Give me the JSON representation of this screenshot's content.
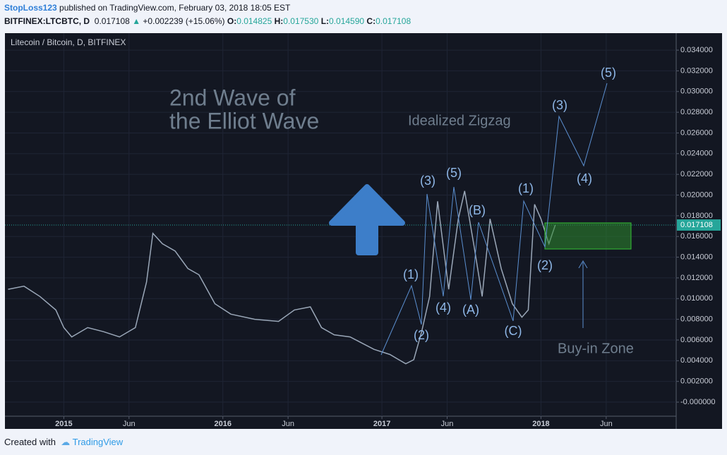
{
  "header": {
    "author": "StopLoss123",
    "published": "published on TradingView.com, February 03, 2018 18:05 EST",
    "symbol": "BITFINEX:LTCBTC, D",
    "last": "0.017108",
    "change": "+0.002239 (+15.06%)",
    "open_label": "O:",
    "open": "0.014825",
    "high_label": "H:",
    "high": "0.017530",
    "low_label": "L:",
    "low": "0.014590",
    "close_label": "C:",
    "close": "0.017108"
  },
  "chart_data": {
    "type": "line",
    "title": "Litecoin / Bitcoin, D, BITFINEX",
    "color": "#9aa7b8",
    "grid": true,
    "x": [
      2014.65,
      2014.75,
      2014.85,
      2014.95,
      2015.0,
      2015.05,
      2015.15,
      2015.25,
      2015.35,
      2015.45,
      2015.52,
      2015.56,
      2015.62,
      2015.7,
      2015.78,
      2015.85,
      2015.95,
      2016.05,
      2016.2,
      2016.35,
      2016.45,
      2016.55,
      2016.62,
      2016.7,
      2016.8,
      2016.95,
      2017.05,
      2017.15,
      2017.2,
      2017.25,
      2017.3,
      2017.35,
      2017.42,
      2017.48,
      2017.52,
      2017.58,
      2017.63,
      2017.68,
      2017.75,
      2017.82,
      2017.88,
      2017.92,
      2017.96,
      2018.0,
      2018.05,
      2018.09
    ],
    "values": [
      0.0109,
      0.0112,
      0.0102,
      0.0089,
      0.0072,
      0.0063,
      0.0072,
      0.0068,
      0.0063,
      0.0072,
      0.0116,
      0.0163,
      0.0153,
      0.0146,
      0.0129,
      0.0123,
      0.0095,
      0.0085,
      0.008,
      0.0078,
      0.0089,
      0.0092,
      0.0072,
      0.0065,
      0.0063,
      0.0051,
      0.0046,
      0.0037,
      0.0041,
      0.0068,
      0.0102,
      0.0194,
      0.0109,
      0.0177,
      0.0204,
      0.015,
      0.0102,
      0.0177,
      0.0129,
      0.0095,
      0.0082,
      0.0089,
      0.0191,
      0.0177,
      0.0153,
      0.017108
    ],
    "current_price": 0.017108,
    "xlim": [
      2014.63,
      2018.85
    ],
    "xticks": [
      {
        "value": 2015,
        "label": "2015"
      },
      {
        "value": 2015.41,
        "label": "Jun"
      },
      {
        "value": 2016,
        "label": "2016"
      },
      {
        "value": 2016.41,
        "label": "Jun"
      },
      {
        "value": 2017,
        "label": "2017"
      },
      {
        "value": 2017.41,
        "label": "Jun"
      },
      {
        "value": 2018,
        "label": "2018"
      },
      {
        "value": 2018.41,
        "label": "Jun"
      }
    ],
    "ylim": [
      -0.00136,
      0.03564
    ],
    "yticks": [
      {
        "value": 0,
        "label": "-0.000000"
      },
      {
        "value": 0.002,
        "label": "0.002000"
      },
      {
        "value": 0.004,
        "label": "0.004000"
      },
      {
        "value": 0.006,
        "label": "0.006000"
      },
      {
        "value": 0.008,
        "label": "0.008000"
      },
      {
        "value": 0.01,
        "label": "0.010000"
      },
      {
        "value": 0.012,
        "label": "0.012000"
      },
      {
        "value": 0.014,
        "label": "0.014000"
      },
      {
        "value": 0.016,
        "label": "0.016000"
      },
      {
        "value": 0.018,
        "label": "0.018000"
      },
      {
        "value": 0.02,
        "label": "0.020000"
      },
      {
        "value": 0.022,
        "label": "0.022000"
      },
      {
        "value": 0.024,
        "label": "0.024000"
      },
      {
        "value": 0.026,
        "label": "0.026000"
      },
      {
        "value": 0.028,
        "label": "0.028000"
      },
      {
        "value": 0.03,
        "label": "0.030000"
      },
      {
        "value": 0.032,
        "label": "0.032000"
      },
      {
        "value": 0.034,
        "label": "0.034000"
      }
    ],
    "annotations": {
      "headline_1": "2nd Wave of",
      "headline_2": "the Elliot Wave",
      "zigzag": "Idealized Zigzag",
      "zone": "Buy-in Zone",
      "waves": [
        "(1)",
        "(2)",
        "(3)",
        "(4)",
        "(5)",
        "(B)",
        "(A)",
        "(C)",
        "(1)",
        "(2)",
        "(3)",
        "(4)",
        "(5)"
      ]
    }
  },
  "footer": {
    "created": "Created with",
    "brand": "TradingView"
  }
}
